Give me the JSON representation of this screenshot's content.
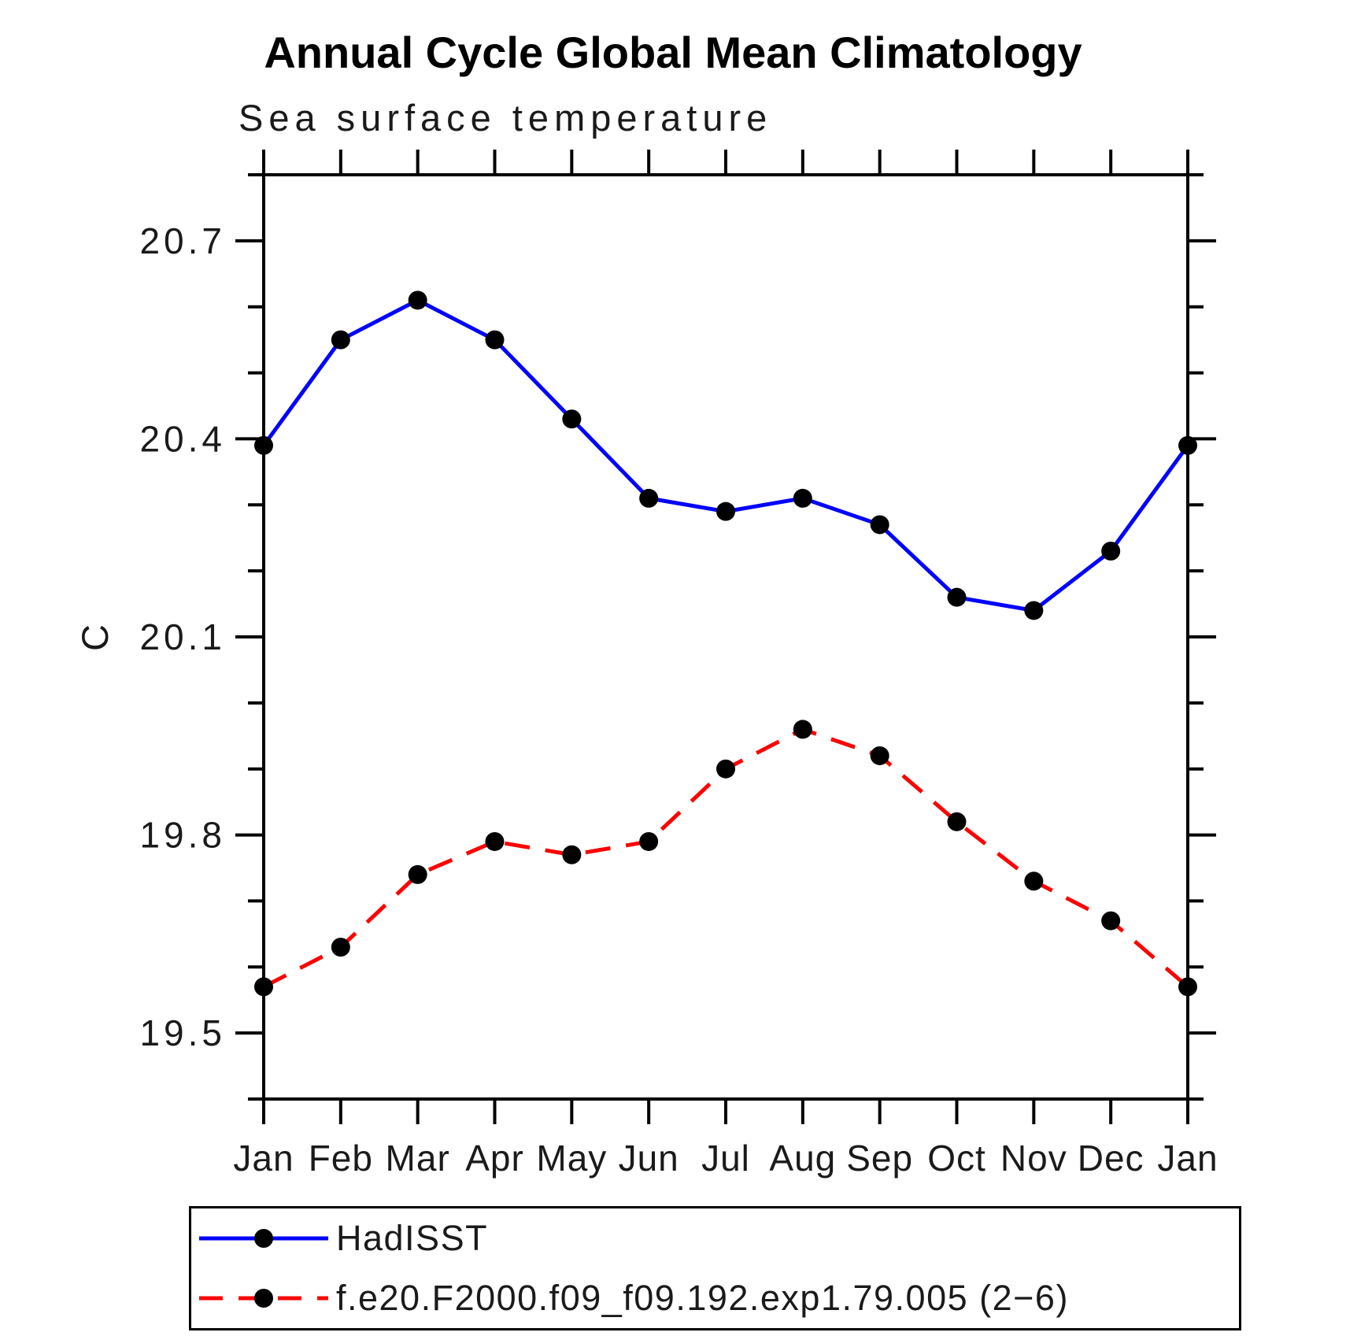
{
  "header": {
    "title": "Annual Cycle Global Mean Climatology",
    "subtitle": "Sea surface temperature"
  },
  "y_axis": {
    "label": "C"
  },
  "chart_data": {
    "type": "line",
    "title": "Annual Cycle Global Mean Climatology",
    "subtitle": "Sea surface temperature",
    "xlabel": "",
    "ylabel": "C",
    "categories": [
      "Jan",
      "Feb",
      "Mar",
      "Apr",
      "May",
      "Jun",
      "Jul",
      "Aug",
      "Sep",
      "Oct",
      "Nov",
      "Dec",
      "Jan"
    ],
    "ylim": [
      19.4,
      20.8
    ],
    "ytick_labels": [
      "19.5",
      "19.8",
      "20.1",
      "20.4",
      "20.7"
    ],
    "ytick_minor_step": 0.1,
    "grid": false,
    "legend_position": "bottom-left-box",
    "series": [
      {
        "name": "HadISST",
        "color": "#0000FF",
        "line_style": "solid",
        "marker": "filled-circle",
        "marker_color": "#000000",
        "values": [
          20.39,
          20.55,
          20.61,
          20.55,
          20.43,
          20.31,
          20.29,
          20.31,
          20.27,
          20.16,
          20.14,
          20.23,
          20.39
        ]
      },
      {
        "name": "f.e20.F2000.f09_f09.192.exp1.79.005 (2−6)",
        "color": "#FF0000",
        "line_style": "dashed",
        "marker": "filled-circle",
        "marker_color": "#000000",
        "values": [
          19.57,
          19.63,
          19.74,
          19.79,
          19.77,
          19.79,
          19.9,
          19.96,
          19.92,
          19.82,
          19.73,
          19.67,
          19.57
        ]
      }
    ]
  }
}
